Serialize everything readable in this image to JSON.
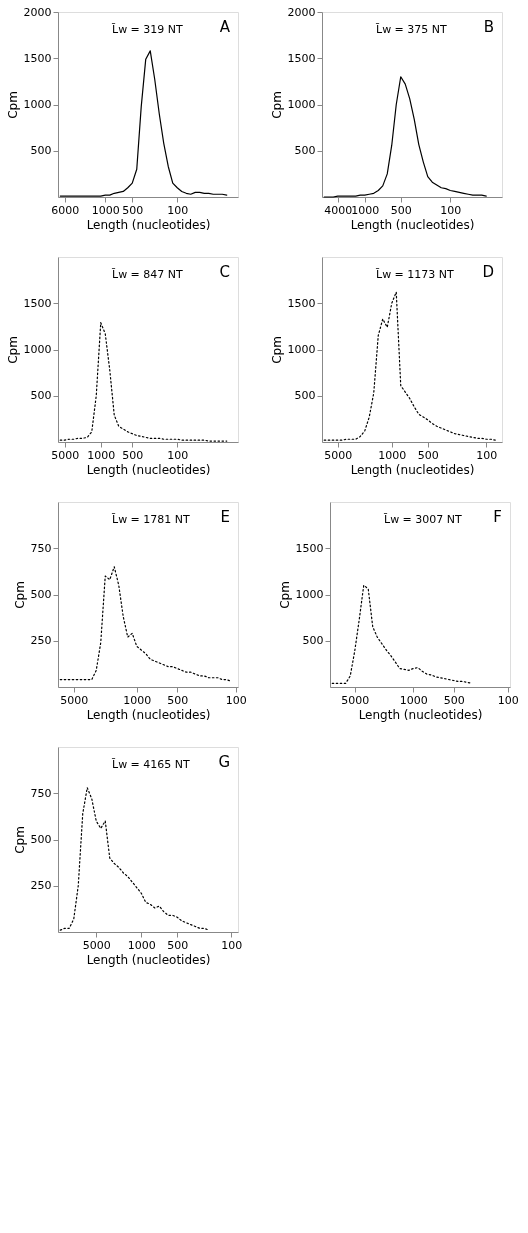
{
  "chart_data": [
    {
      "type": "line",
      "title": "A",
      "xlabel": "Length (nucleotides)",
      "ylabel": "Cpm",
      "ylim": [
        0,
        2000
      ],
      "yticks": [
        500,
        1000,
        1500,
        2000
      ],
      "categories": [
        null,
        "6000",
        null,
        null,
        null,
        null,
        null,
        null,
        null,
        null,
        "1000",
        null,
        null,
        null,
        null,
        null,
        "500",
        null,
        null,
        null,
        null,
        null,
        null,
        null,
        null,
        null,
        "100",
        null,
        null,
        null,
        null,
        null,
        null,
        null,
        null,
        null,
        null,
        null,
        null,
        null
      ],
      "series": [
        {
          "color": "#000000",
          "values": [
            10,
            10,
            10,
            10,
            10,
            10,
            10,
            10,
            10,
            10,
            20,
            20,
            40,
            50,
            60,
            100,
            150,
            300,
            980,
            1490,
            1580,
            1270,
            900,
            580,
            330,
            150,
            100,
            60,
            40,
            30,
            50,
            50,
            40,
            40,
            30,
            30,
            30,
            20,
            null,
            null
          ]
        }
      ],
      "annotations": [
        "L̄w = 319 NT"
      ],
      "line_style": "solid",
      "grid": false
    },
    {
      "type": "line",
      "title": "B",
      "xlabel": "Length (nucleotides)",
      "ylabel": "Cpm",
      "ylim": [
        0,
        2000
      ],
      "yticks": [
        500,
        1000,
        1500,
        2000
      ],
      "categories": [
        null,
        null,
        null,
        "4000",
        null,
        null,
        null,
        null,
        null,
        "1000",
        null,
        null,
        null,
        null,
        null,
        null,
        null,
        "500",
        null,
        null,
        null,
        null,
        null,
        null,
        null,
        null,
        null,
        null,
        "100",
        null,
        null,
        null,
        null,
        null,
        null,
        null,
        null,
        null,
        null,
        null
      ],
      "series": [
        {
          "color": "#000000",
          "values": [
            0,
            0,
            0,
            10,
            10,
            10,
            10,
            10,
            20,
            20,
            30,
            40,
            70,
            120,
            250,
            560,
            1000,
            1300,
            1220,
            1060,
            840,
            570,
            380,
            220,
            160,
            130,
            100,
            90,
            70,
            60,
            50,
            40,
            30,
            20,
            20,
            20,
            10,
            null,
            null,
            null
          ]
        }
      ],
      "annotations": [
        "L̄w = 375 NT"
      ],
      "line_style": "solid",
      "grid": false
    },
    {
      "type": "line",
      "title": "C",
      "xlabel": "Length (nucleotides)",
      "ylabel": "Cpm",
      "ylim": [
        0,
        2000
      ],
      "yticks": [
        500,
        1000,
        1500
      ],
      "categories": [
        null,
        "5000",
        null,
        null,
        null,
        null,
        null,
        null,
        null,
        "1000",
        null,
        null,
        null,
        null,
        null,
        null,
        "500",
        null,
        null,
        null,
        null,
        null,
        null,
        null,
        null,
        null,
        "100",
        null,
        null,
        null,
        null,
        null,
        null,
        null,
        null,
        null,
        null,
        null,
        null,
        null
      ],
      "series": [
        {
          "color": "#000000",
          "values": [
            20,
            20,
            30,
            30,
            40,
            40,
            50,
            110,
            500,
            1290,
            1170,
            780,
            290,
            170,
            140,
            110,
            90,
            70,
            60,
            50,
            40,
            40,
            40,
            30,
            30,
            30,
            30,
            20,
            20,
            20,
            20,
            20,
            20,
            10,
            10,
            10,
            10,
            10,
            null,
            null
          ]
        }
      ],
      "annotations": [
        "L̄w = 847 NT"
      ],
      "line_style": "dotted",
      "grid": false
    },
    {
      "type": "line",
      "title": "D",
      "xlabel": "Length (nucleotides)",
      "ylabel": "Cpm",
      "ylim": [
        0,
        2000
      ],
      "yticks": [
        500,
        1000,
        1500
      ],
      "categories": [
        null,
        null,
        null,
        "5000",
        null,
        null,
        null,
        null,
        null,
        null,
        null,
        null,
        null,
        null,
        null,
        "1000",
        null,
        null,
        null,
        null,
        null,
        null,
        null,
        "500",
        null,
        null,
        null,
        null,
        null,
        null,
        null,
        null,
        null,
        null,
        null,
        null,
        "100",
        null,
        null,
        null
      ],
      "series": [
        {
          "color": "#000000",
          "values": [
            20,
            20,
            20,
            20,
            20,
            30,
            30,
            30,
            60,
            120,
            270,
            530,
            1150,
            1330,
            1240,
            1500,
            1620,
            610,
            540,
            470,
            380,
            300,
            270,
            240,
            200,
            170,
            150,
            130,
            110,
            90,
            80,
            70,
            60,
            50,
            40,
            40,
            30,
            30,
            20,
            null
          ]
        }
      ],
      "annotations": [
        "L̄w = 1173 NT"
      ],
      "line_style": "dotted",
      "grid": false
    },
    {
      "type": "line",
      "title": "E",
      "xlabel": "Length (nucleotides)",
      "ylabel": "Cpm",
      "ylim": [
        0,
        1000
      ],
      "yticks": [
        250,
        500,
        750
      ],
      "categories": [
        null,
        null,
        null,
        "5000",
        null,
        null,
        null,
        null,
        null,
        null,
        null,
        null,
        null,
        null,
        null,
        null,
        null,
        "1000",
        null,
        null,
        null,
        null,
        null,
        null,
        null,
        null,
        "500",
        null,
        null,
        null,
        null,
        null,
        null,
        null,
        null,
        null,
        null,
        null,
        null,
        "100"
      ],
      "series": [
        {
          "color": "#000000",
          "values": [
            40,
            40,
            40,
            40,
            40,
            40,
            40,
            40,
            90,
            240,
            600,
            580,
            650,
            550,
            380,
            270,
            290,
            220,
            200,
            180,
            150,
            140,
            130,
            120,
            110,
            110,
            100,
            90,
            80,
            80,
            70,
            60,
            60,
            50,
            50,
            50,
            40,
            40,
            30,
            null
          ]
        }
      ],
      "annotations": [
        "L̄w = 1781 NT"
      ],
      "line_style": "dotted",
      "grid": false
    },
    {
      "type": "line",
      "title": "F",
      "xlabel": "Length (nucleotides)",
      "ylabel": "Cpm",
      "ylim": [
        0,
        2000
      ],
      "yticks": [
        500,
        1000,
        1500
      ],
      "categories": [
        null,
        null,
        null,
        null,
        null,
        "5000",
        null,
        null,
        null,
        null,
        null,
        null,
        null,
        null,
        null,
        null,
        null,
        null,
        "1000",
        null,
        null,
        null,
        null,
        null,
        null,
        null,
        null,
        "500",
        null,
        null,
        null,
        null,
        null,
        null,
        null,
        null,
        null,
        null,
        null,
        "100"
      ],
      "series": [
        {
          "color": "#000000",
          "values": [
            40,
            40,
            40,
            40,
            120,
            390,
            730,
            1100,
            1060,
            650,
            540,
            470,
            400,
            340,
            270,
            200,
            190,
            180,
            200,
            210,
            170,
            140,
            130,
            110,
            100,
            90,
            80,
            70,
            60,
            60,
            50,
            40,
            null,
            null,
            null,
            null,
            null,
            null,
            null,
            null
          ]
        }
      ],
      "annotations": [
        "L̄w = 3007 NT"
      ],
      "line_style": "dotted",
      "grid": false
    },
    {
      "type": "line",
      "title": "G",
      "xlabel": "Length (nucleotides)",
      "ylabel": "Cpm",
      "ylim": [
        0,
        1000
      ],
      "yticks": [
        250,
        500,
        750
      ],
      "categories": [
        null,
        null,
        null,
        null,
        null,
        null,
        null,
        null,
        "5000",
        null,
        null,
        null,
        null,
        null,
        null,
        null,
        null,
        null,
        "1000",
        null,
        null,
        null,
        null,
        null,
        null,
        null,
        "500",
        null,
        null,
        null,
        null,
        null,
        null,
        null,
        null,
        null,
        null,
        null,
        "100",
        null
      ],
      "series": [
        {
          "color": "#000000",
          "values": [
            10,
            20,
            20,
            70,
            250,
            640,
            780,
            720,
            600,
            560,
            600,
            400,
            370,
            350,
            320,
            300,
            270,
            240,
            210,
            160,
            150,
            130,
            140,
            110,
            90,
            90,
            80,
            60,
            50,
            40,
            30,
            20,
            20,
            10,
            null,
            null,
            null,
            null,
            null,
            null
          ]
        }
      ],
      "annotations": [
        "L̄w = 4165 NT"
      ],
      "line_style": "dotted",
      "grid": false
    }
  ]
}
